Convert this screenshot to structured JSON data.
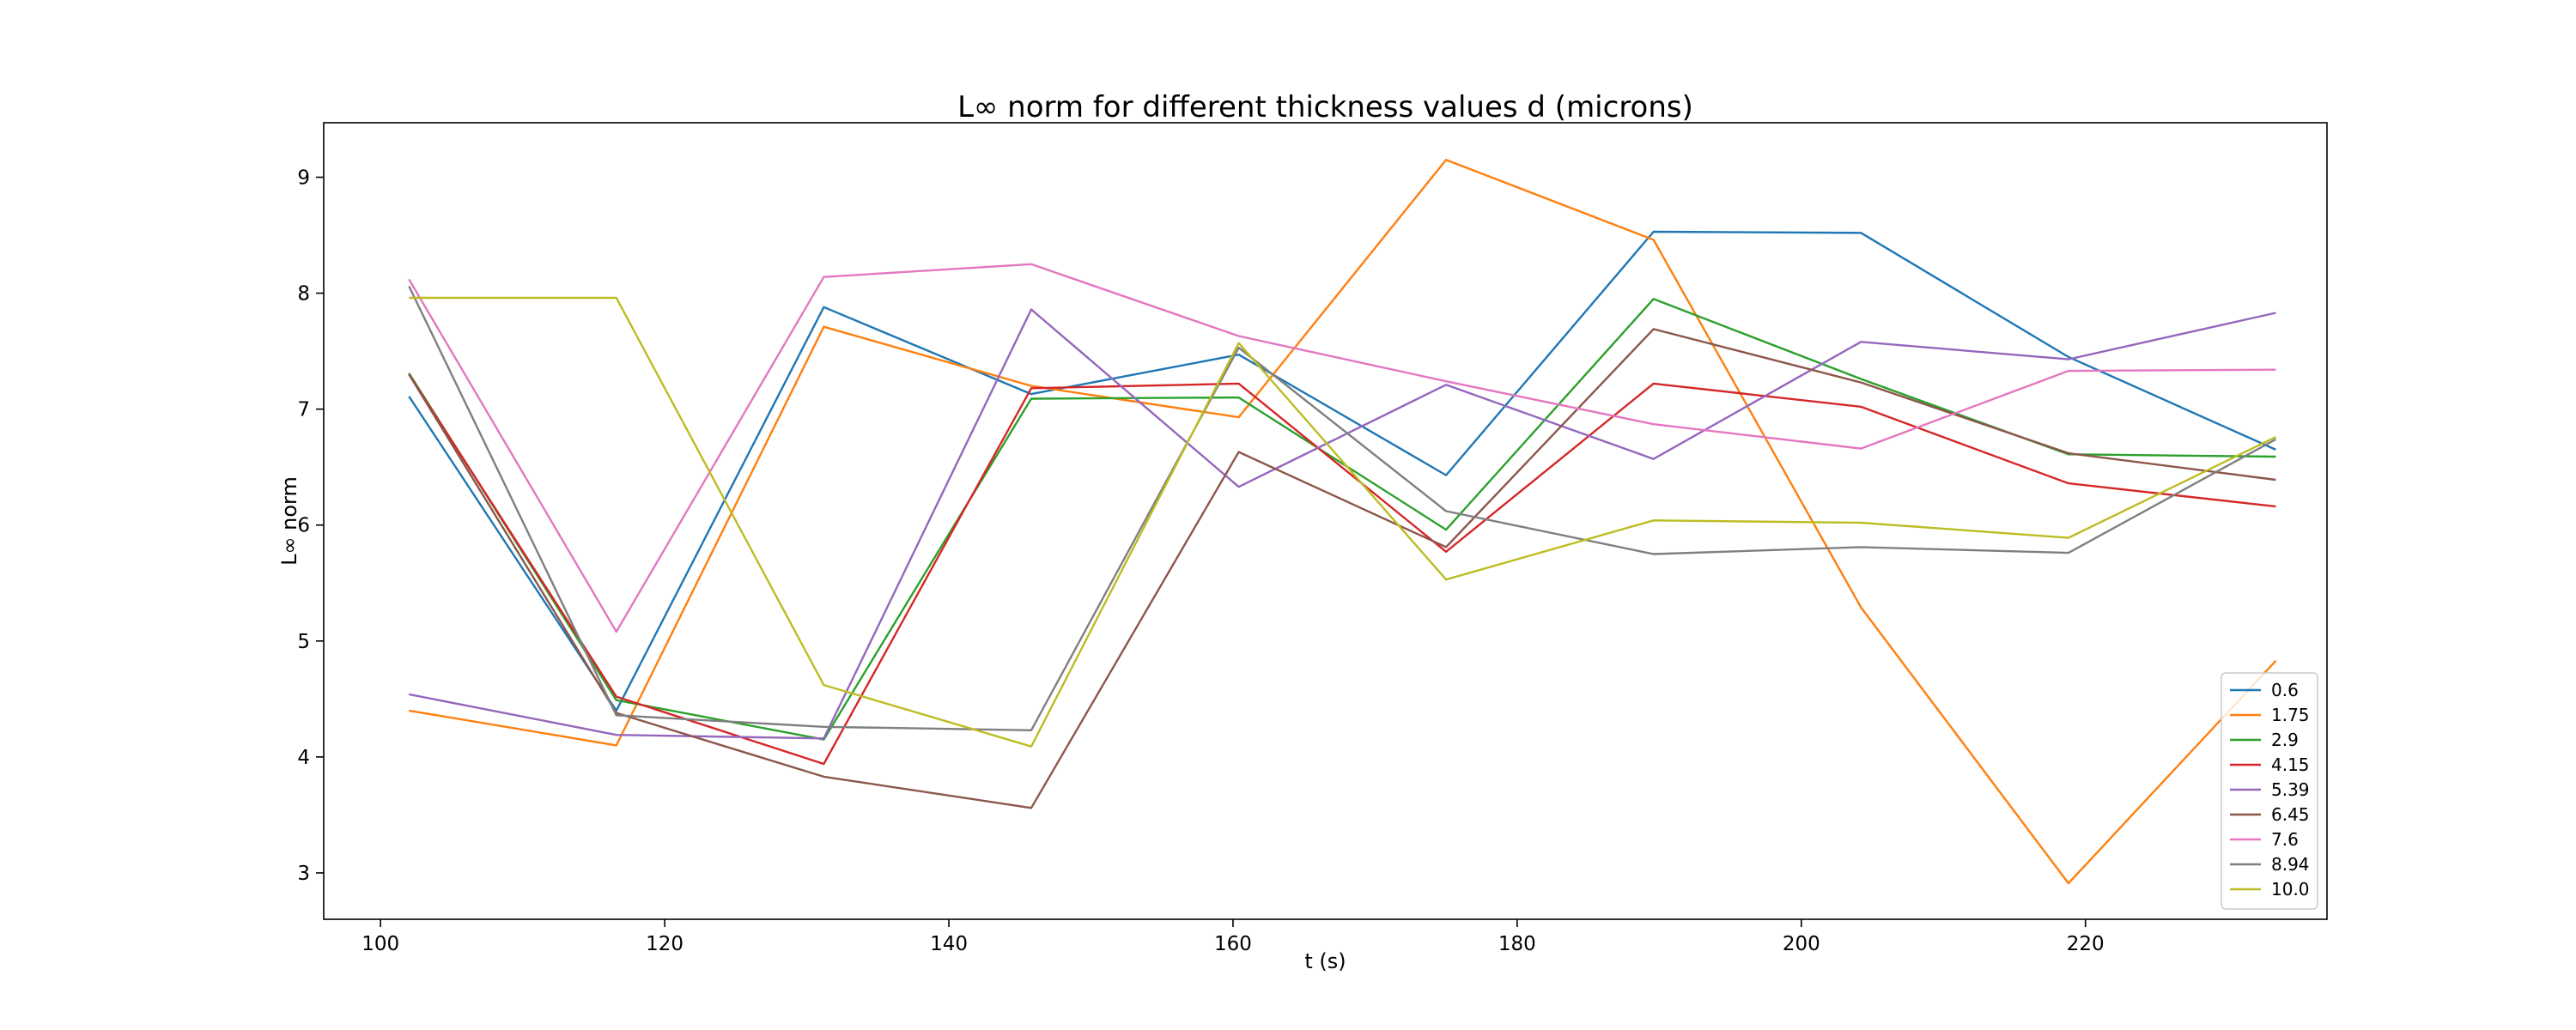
{
  "chart_data": {
    "type": "line",
    "title": "L∞ norm for different thickness values d (microns)",
    "xlabel": "t (s)",
    "ylabel": "L∞ norm",
    "xlim": [
      96,
      237
    ],
    "ylim": [
      2.6,
      9.47
    ],
    "xticks": [
      100,
      120,
      140,
      160,
      180,
      200,
      220
    ],
    "yticks": [
      3,
      4,
      5,
      6,
      7,
      8,
      9
    ],
    "grid": false,
    "legend_position": "bottom-right",
    "x": [
      102,
      116.6,
      131.2,
      145.8,
      160.4,
      175,
      189.6,
      204.2,
      218.8,
      233.4
    ],
    "series": [
      {
        "name": "0.6",
        "color": "#1f77b4",
        "values": [
          7.11,
          4.4,
          7.88,
          7.13,
          7.47,
          6.43,
          8.53,
          8.52,
          7.45,
          6.65
        ]
      },
      {
        "name": "1.75",
        "color": "#ff7f0e",
        "values": [
          4.4,
          4.1,
          7.71,
          7.2,
          6.93,
          9.15,
          8.46,
          5.29,
          2.91,
          4.83
        ]
      },
      {
        "name": "2.9",
        "color": "#2ca02c",
        "values": [
          7.31,
          4.49,
          4.15,
          7.09,
          7.1,
          5.96,
          7.95,
          7.26,
          6.61,
          6.59
        ]
      },
      {
        "name": "4.15",
        "color": "#d62728",
        "values": [
          7.3,
          4.52,
          3.94,
          7.18,
          7.22,
          5.77,
          7.22,
          7.02,
          6.36,
          6.16
        ]
      },
      {
        "name": "5.39",
        "color": "#9467bd",
        "values": [
          4.54,
          4.19,
          4.16,
          7.86,
          6.33,
          7.21,
          6.57,
          7.58,
          7.43,
          7.83
        ]
      },
      {
        "name": "6.45",
        "color": "#8c564b",
        "values": [
          7.3,
          4.38,
          3.83,
          3.56,
          6.63,
          5.81,
          7.69,
          7.23,
          6.62,
          6.39
        ]
      },
      {
        "name": "7.6",
        "color": "#e377c2",
        "values": [
          8.12,
          5.08,
          8.14,
          8.25,
          7.63,
          7.24,
          6.87,
          6.66,
          7.33,
          7.34
        ]
      },
      {
        "name": "8.94",
        "color": "#7f7f7f",
        "values": [
          8.06,
          4.36,
          4.26,
          4.23,
          7.53,
          6.12,
          5.75,
          5.81,
          5.76,
          6.74
        ]
      },
      {
        "name": "10.0",
        "color": "#bcbd22",
        "values": [
          7.96,
          7.96,
          4.62,
          4.09,
          7.57,
          5.53,
          6.04,
          6.02,
          5.89,
          6.76
        ]
      }
    ]
  }
}
